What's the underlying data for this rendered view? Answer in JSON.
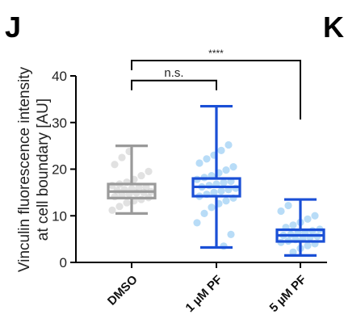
{
  "panel_letter": "J",
  "next_panel_letter": "K",
  "chart_data": {
    "type": "box",
    "ylabel_line1": "Vinculin fluorescence intensity",
    "ylabel_line2": "at cell boundary [AU]",
    "ylim": [
      0,
      40
    ],
    "yticks": [
      0,
      10,
      20,
      30,
      40
    ],
    "categories": [
      "DMSO",
      "1 µM PF",
      "5 µM PF"
    ],
    "grid": false,
    "series": [
      {
        "category": "DMSO",
        "color": "#9a9a9a",
        "point_color": "#c8c8c8",
        "min": 10.5,
        "q1": 13.8,
        "median": 15.2,
        "q3": 16.8,
        "max": 25.0,
        "points": [
          11.2,
          12.0,
          12.8,
          13.2,
          13.5,
          13.9,
          14.1,
          14.4,
          14.7,
          14.9,
          15.0,
          15.2,
          15.4,
          15.6,
          15.8,
          16.0,
          16.2,
          16.5,
          16.8,
          17.2,
          17.8,
          18.6,
          19.5,
          21.0,
          22.5,
          23.8
        ]
      },
      {
        "category": "1 µM PF",
        "color": "#1a4fd6",
        "point_color": "#7ec0f0",
        "min": 3.2,
        "q1": 14.2,
        "median": 16.2,
        "q3": 18.0,
        "max": 33.5,
        "points": [
          3.5,
          6.0,
          8.5,
          10.5,
          11.8,
          12.6,
          13.2,
          13.8,
          14.2,
          14.6,
          15.0,
          15.3,
          15.6,
          15.9,
          16.2,
          16.5,
          16.8,
          17.1,
          17.4,
          17.8,
          18.2,
          18.6,
          19.2,
          19.8,
          20.5,
          21.3,
          22.2,
          23.0,
          24.0,
          25.2
        ]
      },
      {
        "category": "5 µM PF",
        "color": "#1a4fd6",
        "point_color": "#7ec0f0",
        "min": 1.5,
        "q1": 4.5,
        "median": 5.8,
        "q3": 7.0,
        "max": 13.5,
        "points": [
          2.2,
          3.0,
          3.6,
          4.0,
          4.3,
          4.6,
          4.9,
          5.1,
          5.4,
          5.6,
          5.8,
          6.0,
          6.3,
          6.5,
          6.8,
          7.1,
          7.5,
          8.0,
          8.6,
          9.3,
          10.0,
          11.0,
          12.2
        ]
      }
    ],
    "annotations": [
      {
        "from": "DMSO",
        "to": "1 µM PF",
        "label": "n.s.",
        "y": 39.0
      },
      {
        "from": "DMSO",
        "to": "5 µM PF",
        "label": "****",
        "y": 43.3
      }
    ]
  }
}
